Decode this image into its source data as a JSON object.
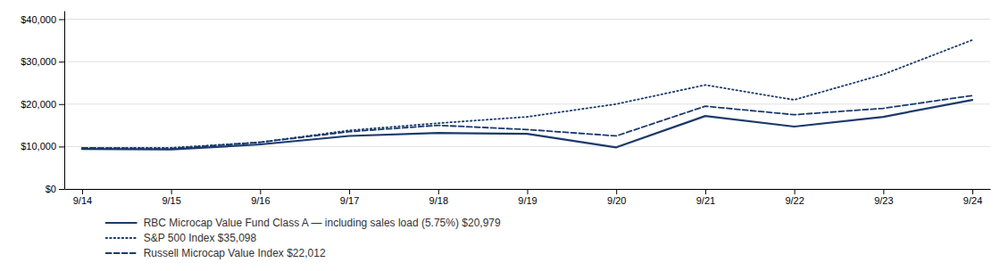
{
  "chart_data": {
    "type": "line",
    "categories": [
      "9/14",
      "9/15",
      "9/16",
      "9/17",
      "9/18",
      "9/19",
      "9/20",
      "9/21",
      "9/22",
      "9/23",
      "9/24"
    ],
    "series": [
      {
        "name": "RBC Microcap Value Fund Class A — including sales load (5.75%) $20,979",
        "color": "#1b3a6b",
        "line_style": "solid",
        "values": [
          9425,
          9300,
          10500,
          12500,
          13200,
          13000,
          9800,
          17200,
          14700,
          17000,
          20979
        ]
      },
      {
        "name": "S&P 500 Index $35,098",
        "color": "#1b3a6b",
        "line_style": "dotted",
        "values": [
          9700,
          9700,
          11000,
          13800,
          15500,
          17000,
          20000,
          24500,
          21000,
          27000,
          35098
        ]
      },
      {
        "name": "Russell Microcap Value Index $22,012",
        "color": "#1b3a6b",
        "line_style": "dashed",
        "values": [
          9700,
          9500,
          11000,
          13500,
          15000,
          14000,
          12500,
          19500,
          17500,
          19000,
          22012
        ]
      }
    ],
    "ylim": [
      0,
      42000
    ],
    "yticks": [
      {
        "value": 0,
        "label": "$0"
      },
      {
        "value": 10000,
        "label": "$10,000"
      },
      {
        "value": 20000,
        "label": "$20,000"
      },
      {
        "value": 30000,
        "label": "$30,000"
      },
      {
        "value": 40000,
        "label": "$40,000"
      }
    ],
    "grid": true,
    "legend": "bottom"
  }
}
